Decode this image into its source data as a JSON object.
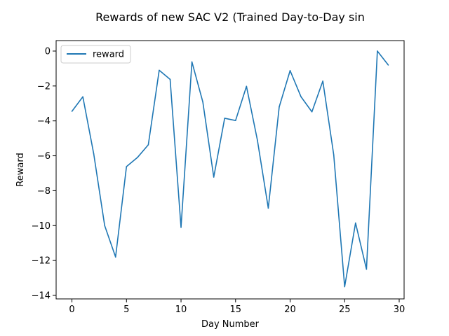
{
  "chart_data": {
    "type": "line",
    "title": "Rewards of new SAC V2 (Trained Day-to-Day sin",
    "xlabel": "Day Number",
    "ylabel": "Reward",
    "xlim": [
      -1.45,
      30.45
    ],
    "ylim": [
      -14.2,
      0.6
    ],
    "xticks": [
      0,
      5,
      10,
      15,
      20,
      25,
      30
    ],
    "yticks": [
      0,
      -2,
      -4,
      -6,
      -8,
      -10,
      -12,
      -14
    ],
    "xtick_labels": [
      "0",
      "5",
      "10",
      "15",
      "20",
      "25",
      "30"
    ],
    "ytick_labels": [
      "0",
      "−2",
      "−4",
      "−6",
      "−8",
      "−10",
      "−12",
      "−14"
    ],
    "grid": false,
    "legend": {
      "placement": "top-left",
      "entries": [
        "reward"
      ]
    },
    "colors": {
      "series": "#1f77b4"
    },
    "series": [
      {
        "name": "reward",
        "x": [
          0,
          1,
          2,
          3,
          4,
          5,
          6,
          7,
          8,
          9,
          10,
          11,
          12,
          13,
          14,
          15,
          16,
          17,
          18,
          19,
          20,
          21,
          22,
          23,
          24,
          25,
          26,
          27,
          28,
          29
        ],
        "values": [
          -3.45,
          -2.62,
          -5.9,
          -10.0,
          -11.8,
          -6.62,
          -6.1,
          -5.37,
          -1.1,
          -1.62,
          -10.1,
          -0.62,
          -2.92,
          -7.22,
          -3.85,
          -3.98,
          -2.02,
          -5.1,
          -9.0,
          -3.2,
          -1.12,
          -2.62,
          -3.48,
          -1.72,
          -5.95,
          -13.5,
          -9.85,
          -12.5,
          0.0,
          -0.8
        ]
      }
    ]
  }
}
